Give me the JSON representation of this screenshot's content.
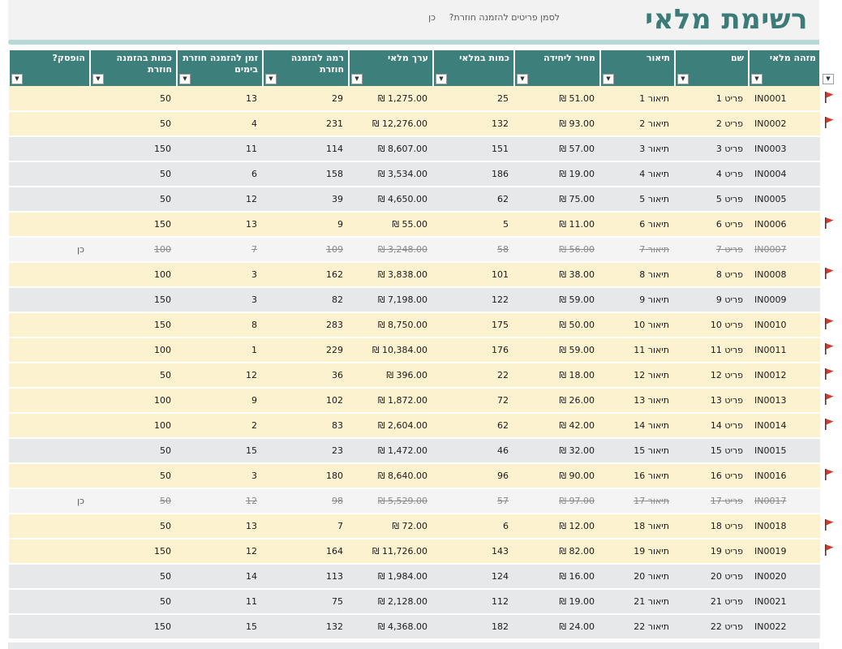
{
  "title": "רשימת מלאי",
  "flag_prompt": "לסמן פריטים להזמנה חוזרת?",
  "flag_prompt_value": "כן",
  "colors": {
    "header": "#3d7f7b",
    "reorder_row": "#fdf2cf",
    "normal_row": "#e7e8ea",
    "flag": "#d9372b"
  },
  "columns": {
    "id": "מזהה מלאי",
    "name": "שם",
    "desc": "תיאור",
    "unit_price": "מחיר ליחידה",
    "qty": "כמות במלאי",
    "value": "ערך מלאי",
    "reorder_level": "רמה להזמנה חוזרת",
    "reorder_days": "זמן להזמנה חוזרת בימים",
    "reorder_qty": "כמות בהזמנה חוזרת",
    "discontinued": "הופסק?"
  },
  "rows": [
    {
      "flag": true,
      "id": "IN0001",
      "name": "פריט 1",
      "desc": "תיאור 1",
      "price": "51.00 ₪",
      "qty": "25",
      "value": "1,275.00 ₪",
      "level": "29",
      "days": "13",
      "rqty": "50",
      "disc": ""
    },
    {
      "flag": true,
      "id": "IN0002",
      "name": "פריט 2",
      "desc": "תיאור 2",
      "price": "93.00 ₪",
      "qty": "132",
      "value": "12,276.00 ₪",
      "level": "231",
      "days": "4",
      "rqty": "50",
      "disc": ""
    },
    {
      "flag": false,
      "id": "IN0003",
      "name": "פריט 3",
      "desc": "תיאור 3",
      "price": "57.00 ₪",
      "qty": "151",
      "value": "8,607.00 ₪",
      "level": "114",
      "days": "11",
      "rqty": "150",
      "disc": ""
    },
    {
      "flag": false,
      "id": "IN0004",
      "name": "פריט 4",
      "desc": "תיאור 4",
      "price": "19.00 ₪",
      "qty": "186",
      "value": "3,534.00 ₪",
      "level": "158",
      "days": "6",
      "rqty": "50",
      "disc": ""
    },
    {
      "flag": false,
      "id": "IN0005",
      "name": "פריט 5",
      "desc": "תיאור 5",
      "price": "75.00 ₪",
      "qty": "62",
      "value": "4,650.00 ₪",
      "level": "39",
      "days": "12",
      "rqty": "50",
      "disc": ""
    },
    {
      "flag": true,
      "id": "IN0006",
      "name": "פריט 6",
      "desc": "תיאור 6",
      "price": "11.00 ₪",
      "qty": "5",
      "value": "55.00 ₪",
      "level": "9",
      "days": "13",
      "rqty": "150",
      "disc": ""
    },
    {
      "flag": false,
      "id": "IN0007",
      "name": "פריט 7",
      "desc": "תיאור 7",
      "price": "56.00 ₪",
      "qty": "58",
      "value": "3,248.00 ₪",
      "level": "109",
      "days": "7",
      "rqty": "100",
      "disc": "כן"
    },
    {
      "flag": true,
      "id": "IN0008",
      "name": "פריט 8",
      "desc": "תיאור 8",
      "price": "38.00 ₪",
      "qty": "101",
      "value": "3,838.00 ₪",
      "level": "162",
      "days": "3",
      "rqty": "100",
      "disc": ""
    },
    {
      "flag": false,
      "id": "IN0009",
      "name": "פריט 9",
      "desc": "תיאור 9",
      "price": "59.00 ₪",
      "qty": "122",
      "value": "7,198.00 ₪",
      "level": "82",
      "days": "3",
      "rqty": "150",
      "disc": ""
    },
    {
      "flag": true,
      "id": "IN0010",
      "name": "פריט 10",
      "desc": "תיאור 10",
      "price": "50.00 ₪",
      "qty": "175",
      "value": "8,750.00 ₪",
      "level": "283",
      "days": "8",
      "rqty": "150",
      "disc": ""
    },
    {
      "flag": true,
      "id": "IN0011",
      "name": "פריט 11",
      "desc": "תיאור 11",
      "price": "59.00 ₪",
      "qty": "176",
      "value": "10,384.00 ₪",
      "level": "229",
      "days": "1",
      "rqty": "100",
      "disc": ""
    },
    {
      "flag": true,
      "id": "IN0012",
      "name": "פריט 12",
      "desc": "תיאור 12",
      "price": "18.00 ₪",
      "qty": "22",
      "value": "396.00 ₪",
      "level": "36",
      "days": "12",
      "rqty": "50",
      "disc": ""
    },
    {
      "flag": true,
      "id": "IN0013",
      "name": "פריט 13",
      "desc": "תיאור 13",
      "price": "26.00 ₪",
      "qty": "72",
      "value": "1,872.00 ₪",
      "level": "102",
      "days": "9",
      "rqty": "100",
      "disc": ""
    },
    {
      "flag": true,
      "id": "IN0014",
      "name": "פריט 14",
      "desc": "תיאור 14",
      "price": "42.00 ₪",
      "qty": "62",
      "value": "2,604.00 ₪",
      "level": "83",
      "days": "2",
      "rqty": "100",
      "disc": ""
    },
    {
      "flag": false,
      "id": "IN0015",
      "name": "פריט 15",
      "desc": "תיאור 15",
      "price": "32.00 ₪",
      "qty": "46",
      "value": "1,472.00 ₪",
      "level": "23",
      "days": "15",
      "rqty": "50",
      "disc": ""
    },
    {
      "flag": true,
      "id": "IN0016",
      "name": "פריט 16",
      "desc": "תיאור 16",
      "price": "90.00 ₪",
      "qty": "96",
      "value": "8,640.00 ₪",
      "level": "180",
      "days": "3",
      "rqty": "50",
      "disc": ""
    },
    {
      "flag": false,
      "id": "IN0017",
      "name": "פריט 17",
      "desc": "תיאור 17",
      "price": "97.00 ₪",
      "qty": "57",
      "value": "5,529.00 ₪",
      "level": "98",
      "days": "12",
      "rqty": "50",
      "disc": "כן"
    },
    {
      "flag": true,
      "id": "IN0018",
      "name": "פריט 18",
      "desc": "תיאור 18",
      "price": "12.00 ₪",
      "qty": "6",
      "value": "72.00 ₪",
      "level": "7",
      "days": "13",
      "rqty": "50",
      "disc": ""
    },
    {
      "flag": true,
      "id": "IN0019",
      "name": "פריט 19",
      "desc": "תיאור 19",
      "price": "82.00 ₪",
      "qty": "143",
      "value": "11,726.00 ₪",
      "level": "164",
      "days": "12",
      "rqty": "150",
      "disc": ""
    },
    {
      "flag": false,
      "id": "IN0020",
      "name": "פריט 20",
      "desc": "תיאור 20",
      "price": "16.00 ₪",
      "qty": "124",
      "value": "1,984.00 ₪",
      "level": "113",
      "days": "14",
      "rqty": "50",
      "disc": ""
    },
    {
      "flag": false,
      "id": "IN0021",
      "name": "פריט 21",
      "desc": "תיאור 21",
      "price": "19.00 ₪",
      "qty": "112",
      "value": "2,128.00 ₪",
      "level": "75",
      "days": "11",
      "rqty": "50",
      "disc": ""
    },
    {
      "flag": false,
      "id": "IN0022",
      "name": "פריט 22",
      "desc": "תיאור 22",
      "price": "24.00 ₪",
      "qty": "182",
      "value": "4,368.00 ₪",
      "level": "132",
      "days": "15",
      "rqty": "150",
      "disc": ""
    }
  ]
}
